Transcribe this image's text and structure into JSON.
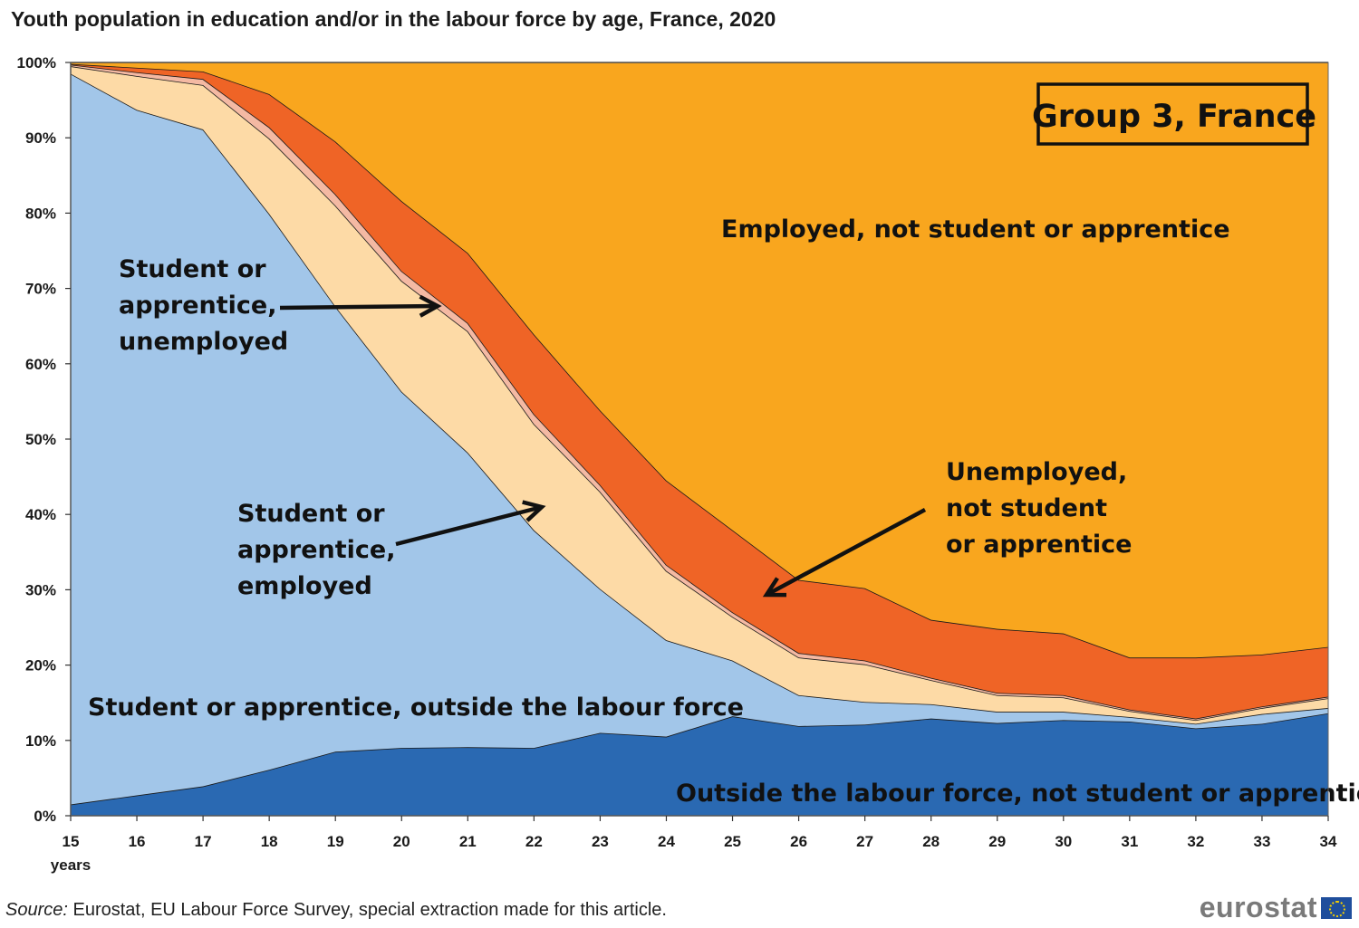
{
  "title": "Youth population in education and/or in the labour force by age, France, 2020",
  "source": {
    "label": "Source:",
    "text": " Eurostat, EU Labour Force Survey, special extraction made for this article."
  },
  "logo": {
    "text": "eurostat"
  },
  "colors": {
    "outside_not_student": "#2a69b2",
    "student_outside": "#a2c6e9",
    "student_employed": "#fddaa6",
    "student_unemployed": "#f4b9a3",
    "unemployed_not_student": "#ef6426",
    "employed_not_student": "#f9a61e"
  },
  "chart_data": {
    "type": "area",
    "stacked": true,
    "x": [
      15,
      16,
      17,
      18,
      19,
      20,
      21,
      22,
      23,
      24,
      25,
      26,
      27,
      28,
      29,
      30,
      31,
      32,
      33,
      34
    ],
    "x_tick_labels": [
      "15",
      "16",
      "17",
      "18",
      "19",
      "20",
      "21",
      "22",
      "23",
      "24",
      "25",
      "26",
      "27",
      "28",
      "29",
      "30",
      "31",
      "32",
      "33",
      "34"
    ],
    "xlabel": "years",
    "y_tick_labels": [
      "0%",
      "10%",
      "20%",
      "30%",
      "40%",
      "50%",
      "60%",
      "70%",
      "80%",
      "90%",
      "100%"
    ],
    "ylim": [
      0,
      100
    ],
    "grid": false,
    "badge": "Group 3, France",
    "series": [
      {
        "name": "Outside the labour force, not student or apprentice",
        "color_key": "outside_not_student",
        "values": [
          1.5,
          2.7,
          3.9,
          6.1,
          8.5,
          9.0,
          9.1,
          9.0,
          11.0,
          10.5,
          13.2,
          11.9,
          12.1,
          12.9,
          12.3,
          12.7,
          12.5,
          11.6,
          12.2,
          13.6
        ]
      },
      {
        "name": "Student or apprentice, outside the labour force",
        "color_key": "student_outside",
        "values": [
          97.0,
          91.0,
          87.2,
          73.8,
          59.1,
          47.3,
          39.1,
          28.9,
          19.1,
          12.8,
          7.4,
          4.1,
          3.0,
          1.9,
          1.5,
          1.1,
          0.6,
          0.6,
          1.3,
          0.7
        ]
      },
      {
        "name": "Student or apprentice, employed",
        "color_key": "student_employed",
        "values": [
          1.0,
          4.5,
          5.9,
          10.0,
          13.4,
          14.7,
          16.1,
          14.1,
          12.9,
          9.2,
          5.8,
          5.0,
          5.0,
          3.2,
          2.2,
          1.9,
          0.8,
          0.5,
          0.8,
          1.3
        ]
      },
      {
        "name": "Student or apprentice, unemployed",
        "color_key": "student_unemployed",
        "values": [
          0.2,
          0.5,
          0.8,
          1.5,
          1.5,
          1.3,
          1.1,
          1.3,
          0.9,
          0.8,
          0.6,
          0.6,
          0.5,
          0.3,
          0.3,
          0.3,
          0.2,
          0.2,
          0.2,
          0.2
        ]
      },
      {
        "name": "Unemployed, not student or apprentice",
        "color_key": "unemployed_not_student",
        "values": [
          0.1,
          0.6,
          1.0,
          4.4,
          7.0,
          9.3,
          9.3,
          10.6,
          9.9,
          11.2,
          10.9,
          9.7,
          9.6,
          7.7,
          8.5,
          8.2,
          6.9,
          8.1,
          6.9,
          6.6
        ]
      },
      {
        "name": "Employed, not student or apprentice",
        "color_key": "employed_not_student",
        "values": [
          0.2,
          0.7,
          1.2,
          4.2,
          10.5,
          18.4,
          25.3,
          36.1,
          46.2,
          55.5,
          62.1,
          68.7,
          69.8,
          74.0,
          75.2,
          75.8,
          79.0,
          79.0,
          78.6,
          77.6
        ]
      }
    ],
    "annotations": [
      {
        "lines": [
          "Employed, not student or apprentice"
        ]
      },
      {
        "lines": [
          "Student or",
          "apprentice,",
          "unemployed"
        ]
      },
      {
        "lines": [
          "Student or",
          "apprentice,",
          "employed"
        ]
      },
      {
        "lines": [
          "Unemployed,",
          "not student",
          "or apprentice"
        ]
      },
      {
        "lines": [
          "Student or apprentice, outside the labour force"
        ]
      },
      {
        "lines": [
          "Outside the labour force, not student or apprentice"
        ]
      }
    ]
  }
}
